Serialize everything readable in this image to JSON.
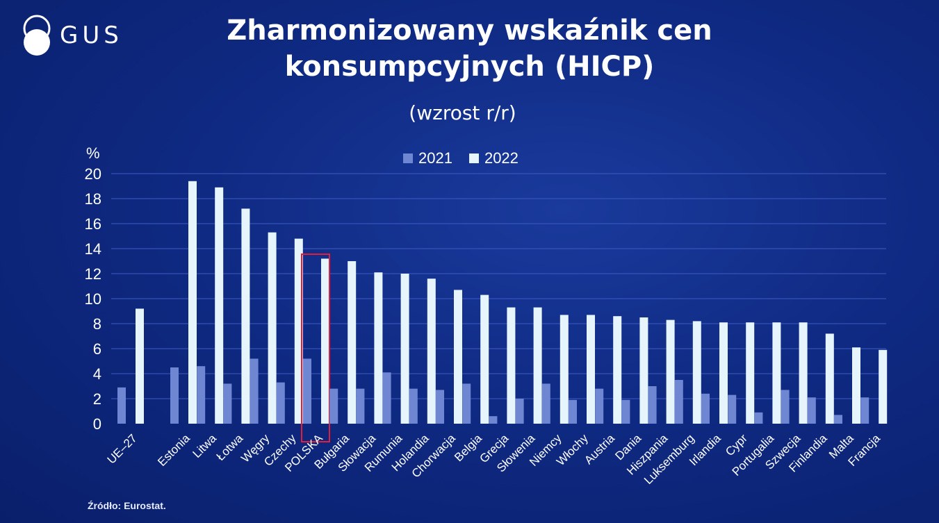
{
  "logo": {
    "text": "GUS"
  },
  "header": {
    "title_line1": "Zharmonizowany wskaźnik cen",
    "title_line2": "konsumpcyjnych (HICP)",
    "subtitle": "(wzrost r/r)"
  },
  "source": "Źródło: Eurostat.",
  "colors": {
    "s2021": "#6f86d3",
    "s2022": "#e6f4fb",
    "highlight": "#e0203a",
    "grid": "#3d5cc4"
  },
  "chart_data": {
    "type": "bar",
    "ylabel": "%",
    "ylim": [
      0,
      20
    ],
    "yticks": [
      0,
      2,
      4,
      6,
      8,
      10,
      12,
      14,
      16,
      18,
      20
    ],
    "grid": true,
    "legend_position": "top",
    "highlighted_category": "POLSKA",
    "categories": [
      "UE–27",
      "Estonia",
      "Litwa",
      "Łotwa",
      "Węgry",
      "Czechy",
      "POLSKA",
      "Bułgaria",
      "Słowacja",
      "Rumunia",
      "Holandia",
      "Chorwacja",
      "Belgia",
      "Grecja",
      "Słowenia",
      "Niemcy",
      "Włochy",
      "Austria",
      "Dania",
      "Hiszpania",
      "Luksemburg",
      "Irlandia",
      "Cypr",
      "Portugalia",
      "Szwecja",
      "Finlandia",
      "Malta",
      "Francja"
    ],
    "series": [
      {
        "name": "2021",
        "values": [
          2.9,
          4.5,
          4.6,
          3.2,
          5.2,
          3.3,
          5.2,
          2.8,
          2.8,
          4.1,
          2.8,
          2.7,
          3.2,
          0.6,
          2.0,
          3.2,
          1.9,
          2.8,
          1.9,
          3.0,
          3.5,
          2.4,
          2.3,
          0.9,
          2.7,
          2.1,
          0.7,
          2.1
        ]
      },
      {
        "name": "2022",
        "values": [
          9.2,
          19.4,
          18.9,
          17.2,
          15.3,
          14.8,
          13.2,
          13.0,
          12.1,
          12.0,
          11.6,
          10.7,
          10.3,
          9.3,
          9.3,
          8.7,
          8.7,
          8.6,
          8.5,
          8.3,
          8.2,
          8.1,
          8.1,
          8.1,
          8.1,
          7.2,
          6.1,
          5.9
        ]
      }
    ]
  }
}
